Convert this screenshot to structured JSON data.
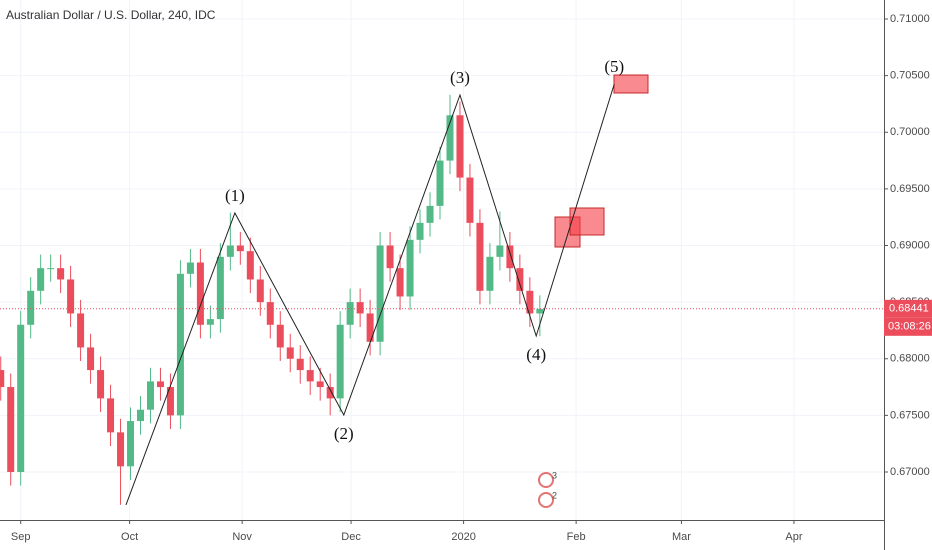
{
  "chart_data": {
    "type": "candlestick",
    "title": "Australian Dollar / U.S. Dollar, 240, IDC",
    "colors": {
      "up": "#53b987",
      "down": "#eb4d5c"
    },
    "x": [
      -4.5,
      -1.75,
      1,
      3.75,
      6.5,
      9.25,
      12,
      14.75,
      17.5,
      20.25,
      23,
      25.75,
      28.5,
      31.25,
      34,
      36.75,
      39.5,
      42.25,
      45,
      47.75,
      50.5,
      53.25,
      56,
      58.75,
      61.5,
      64.25,
      67,
      69.75,
      72.5,
      75.25,
      78,
      80.75,
      83.5,
      86.25,
      89,
      91.75,
      94.5,
      97.25,
      100,
      102.75,
      105.5,
      108.25,
      111,
      113.75,
      116.5,
      119.25,
      122,
      124.75,
      127.5,
      130.25,
      133,
      135.75,
      138.5,
      141.25,
      144
    ],
    "open": [
      0.679,
      0.6775,
      0.67,
      0.683,
      0.686,
      0.688,
      0.688,
      0.687,
      0.684,
      0.681,
      0.679,
      0.6765,
      0.6735,
      0.6705,
      0.6745,
      0.6755,
      0.678,
      0.6775,
      0.675,
      0.6875,
      0.6885,
      0.683,
      0.6835,
      0.689,
      0.69,
      0.6895,
      0.687,
      0.685,
      0.683,
      0.681,
      0.68,
      0.679,
      0.678,
      0.6775,
      0.6765,
      0.683,
      0.685,
      0.684,
      0.6815,
      0.69,
      0.688,
      0.6855,
      0.6905,
      0.692,
      0.6935,
      0.6975,
      0.7015,
      0.696,
      0.692,
      0.686,
      0.689,
      0.69,
      0.688,
      0.686,
      0.684
    ],
    "high": [
      0.6802,
      0.6787,
      0.6842,
      0.6872,
      0.6892,
      0.6892,
      0.6892,
      0.6882,
      0.6852,
      0.6822,
      0.6802,
      0.6777,
      0.6747,
      0.6757,
      0.6767,
      0.6792,
      0.6792,
      0.6787,
      0.6887,
      0.6897,
      0.6897,
      0.6847,
      0.6902,
      0.6929,
      0.6912,
      0.6907,
      0.6882,
      0.6862,
      0.6842,
      0.6822,
      0.6812,
      0.6802,
      0.6792,
      0.6787,
      0.6842,
      0.6862,
      0.6862,
      0.6852,
      0.6912,
      0.6912,
      0.6892,
      0.6917,
      0.6932,
      0.6947,
      0.6987,
      0.7033,
      0.7027,
      0.6972,
      0.6932,
      0.6902,
      0.693,
      0.6912,
      0.6892,
      0.6872,
      0.6856
    ],
    "low": [
      0.6763,
      0.6688,
      0.6688,
      0.6818,
      0.6848,
      0.6868,
      0.6858,
      0.6828,
      0.6798,
      0.6778,
      0.6753,
      0.6723,
      0.6671,
      0.6693,
      0.6733,
      0.6743,
      0.6763,
      0.6738,
      0.6738,
      0.6863,
      0.6818,
      0.6818,
      0.6823,
      0.6878,
      0.6883,
      0.6858,
      0.6838,
      0.6818,
      0.6798,
      0.6788,
      0.6778,
      0.6768,
      0.6763,
      0.675,
      0.6753,
      0.6818,
      0.6828,
      0.6803,
      0.6803,
      0.6868,
      0.6843,
      0.6843,
      0.6893,
      0.6908,
      0.6923,
      0.6963,
      0.6948,
      0.6908,
      0.6848,
      0.6848,
      0.6878,
      0.6868,
      0.6848,
      0.6828,
      0.682
    ],
    "close": [
      0.6775,
      0.67,
      0.683,
      0.686,
      0.688,
      0.688,
      0.687,
      0.684,
      0.681,
      0.679,
      0.6765,
      0.6735,
      0.6705,
      0.6745,
      0.6755,
      0.678,
      0.6775,
      0.675,
      0.6875,
      0.6885,
      0.683,
      0.6835,
      0.689,
      0.69,
      0.6895,
      0.687,
      0.685,
      0.683,
      0.681,
      0.68,
      0.679,
      0.678,
      0.6775,
      0.6765,
      0.683,
      0.685,
      0.684,
      0.6815,
      0.69,
      0.688,
      0.6855,
      0.6905,
      0.692,
      0.6935,
      0.6975,
      0.7015,
      0.696,
      0.692,
      0.686,
      0.689,
      0.69,
      0.688,
      0.686,
      0.684,
      0.6844
    ],
    "wave": {
      "x": [
        30,
        60,
        90,
        122,
        143,
        164.5
      ],
      "y": [
        0.66709,
        0.69287,
        0.67503,
        0.70329,
        0.68201,
        0.70426
      ],
      "labels": [
        null,
        "(1)",
        "(2)",
        "(3)",
        "(4)",
        "(5)"
      ]
    },
    "current_price": {
      "value": 0.68441,
      "label": "0.68441"
    },
    "countdown": "03:08:26",
    "events": [
      "3",
      "2"
    ],
    "xlim": [
      -4.7,
      238.8
    ],
    "ylim": [
      0.66576,
      0.71168
    ],
    "xticks": [
      {
        "value": 1,
        "label": "Sep"
      },
      {
        "value": 31,
        "label": "Oct"
      },
      {
        "value": 62,
        "label": "Nov"
      },
      {
        "value": 92,
        "label": "Dec"
      },
      {
        "value": 123,
        "label": "2020"
      },
      {
        "value": 154,
        "label": "Feb"
      },
      {
        "value": 183,
        "label": "Mar"
      },
      {
        "value": 214,
        "label": "Apr"
      }
    ],
    "yticks": [
      {
        "value": 0.67,
        "label": "0.67000"
      },
      {
        "value": 0.675,
        "label": "0.67500"
      },
      {
        "value": 0.68,
        "label": "0.68000"
      },
      {
        "value": 0.685,
        "label": "0.68500"
      },
      {
        "value": 0.69,
        "label": "0.69000"
      },
      {
        "value": 0.695,
        "label": "0.69500"
      },
      {
        "value": 0.7,
        "label": "0.70000"
      },
      {
        "value": 0.705,
        "label": "0.70500"
      },
      {
        "value": 0.71,
        "label": "0.71000"
      }
    ],
    "grid": true
  }
}
